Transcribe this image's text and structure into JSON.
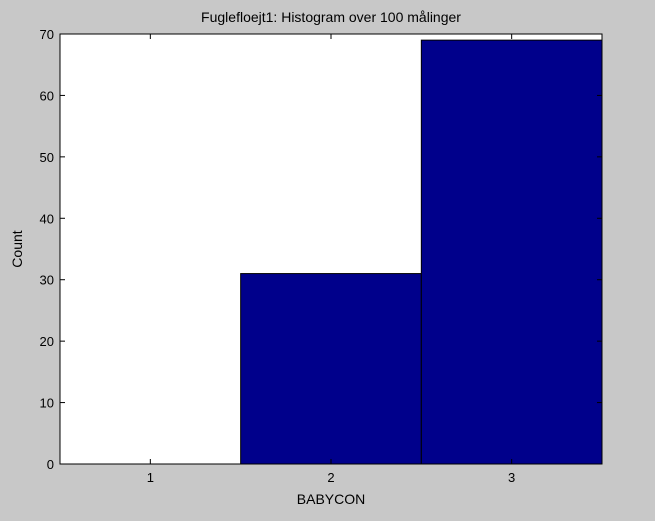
{
  "colors": {
    "figure_background": "#c8c8c8",
    "plot_background": "#ffffff",
    "bar_fill": "#00008b",
    "bar_edge": "#000000",
    "axis": "#000000"
  },
  "chart_data": {
    "type": "bar",
    "title": "Fuglefloejt1: Histogram over 100 målinger",
    "xlabel": "BABYCON",
    "ylabel": "Count",
    "categories": [
      "1",
      "2",
      "3"
    ],
    "values": [
      0,
      31,
      69
    ],
    "xlim": [
      0.5,
      3.5
    ],
    "ylim": [
      0,
      70
    ],
    "yticks": [
      0,
      10,
      20,
      30,
      40,
      50,
      60,
      70
    ],
    "grid": false,
    "legend": "none"
  }
}
